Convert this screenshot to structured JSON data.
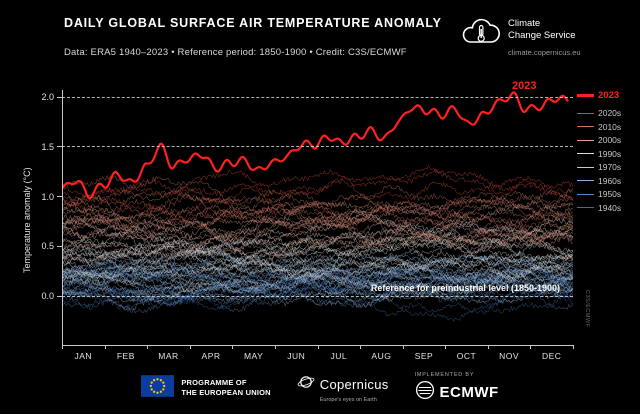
{
  "header": {
    "title": "DAILY GLOBAL SURFACE AIR TEMPERATURE ANOMALY",
    "subtitle": "Data: ERA5 1940–2023 • Reference period: 1850-1900 • Credit: C3S/ECMWF"
  },
  "logo": {
    "name_line1": "Climate",
    "name_line2": "Change Service",
    "url": "climate.copernicus.eu"
  },
  "chart_data": {
    "type": "line",
    "title": "Daily global surface air temperature anomaly",
    "ylabel": "Temperature anomaly (°C)",
    "xlabel_months": [
      "JAN",
      "FEB",
      "MAR",
      "APR",
      "MAY",
      "JUN",
      "JUL",
      "AUG",
      "SEP",
      "OCT",
      "NOV",
      "DEC"
    ],
    "ylim": [
      -0.49,
      2.07
    ],
    "yticks": [
      0.0,
      0.5,
      1.0,
      1.5,
      2.0
    ],
    "dashed_gridlines": [
      0.0,
      1.5,
      2.0
    ],
    "grid": "dashed horizontal at 0.0, 1.5, 2.0",
    "legend_position": "right",
    "annotation": "Reference for preindustrial level (1850-1900)",
    "line_label_2023": "2023",
    "watermark_vertical": "C3S/ECMWF",
    "series_2023": {
      "name": "2023",
      "color": "#ff2020",
      "interval_days": 10,
      "values": [
        1.06,
        1.18,
        1.02,
        1.1,
        1.24,
        1.14,
        1.28,
        1.52,
        1.3,
        1.36,
        1.44,
        1.28,
        1.32,
        1.38,
        1.26,
        1.32,
        1.42,
        1.52,
        1.5,
        1.62,
        1.54,
        1.58,
        1.68,
        1.58,
        1.74,
        1.92,
        1.86,
        1.8,
        1.9,
        1.72,
        1.8,
        1.96,
        2.02,
        1.86,
        1.92,
        1.98,
        1.95
      ]
    },
    "decades": [
      {
        "name": "2020s",
        "color": "#d64638",
        "mean": 1.08,
        "years": 3
      },
      {
        "name": "2010s",
        "color": "#cf7463",
        "mean": 0.85,
        "years": 10
      },
      {
        "name": "2000s",
        "color": "#d5a295",
        "mean": 0.64,
        "years": 10
      },
      {
        "name": "1990s",
        "color": "#e0ddd8",
        "mean": 0.47,
        "years": 10
      },
      {
        "name": "1970s",
        "color": "#c2cdd8",
        "mean": 0.24,
        "years": 10
      },
      {
        "name": "1960s",
        "color": "#8fb0d0",
        "mean": 0.18,
        "years": 10
      },
      {
        "name": "1950s",
        "color": "#5b87bb",
        "mean": 0.13,
        "years": 10
      },
      {
        "name": "1940s",
        "color": "#3d6aa6",
        "mean": 0.1,
        "years": 10
      }
    ]
  },
  "footer": {
    "eu_programme_line1": "PROGRAMME OF",
    "eu_programme_line2": "THE EUROPEAN UNION",
    "copernicus_name": "Copernicus",
    "copernicus_tagline": "Europe's eyes on Earth",
    "implemented_by": "IMPLEMENTED BY",
    "ecmwf": "ECMWF"
  }
}
